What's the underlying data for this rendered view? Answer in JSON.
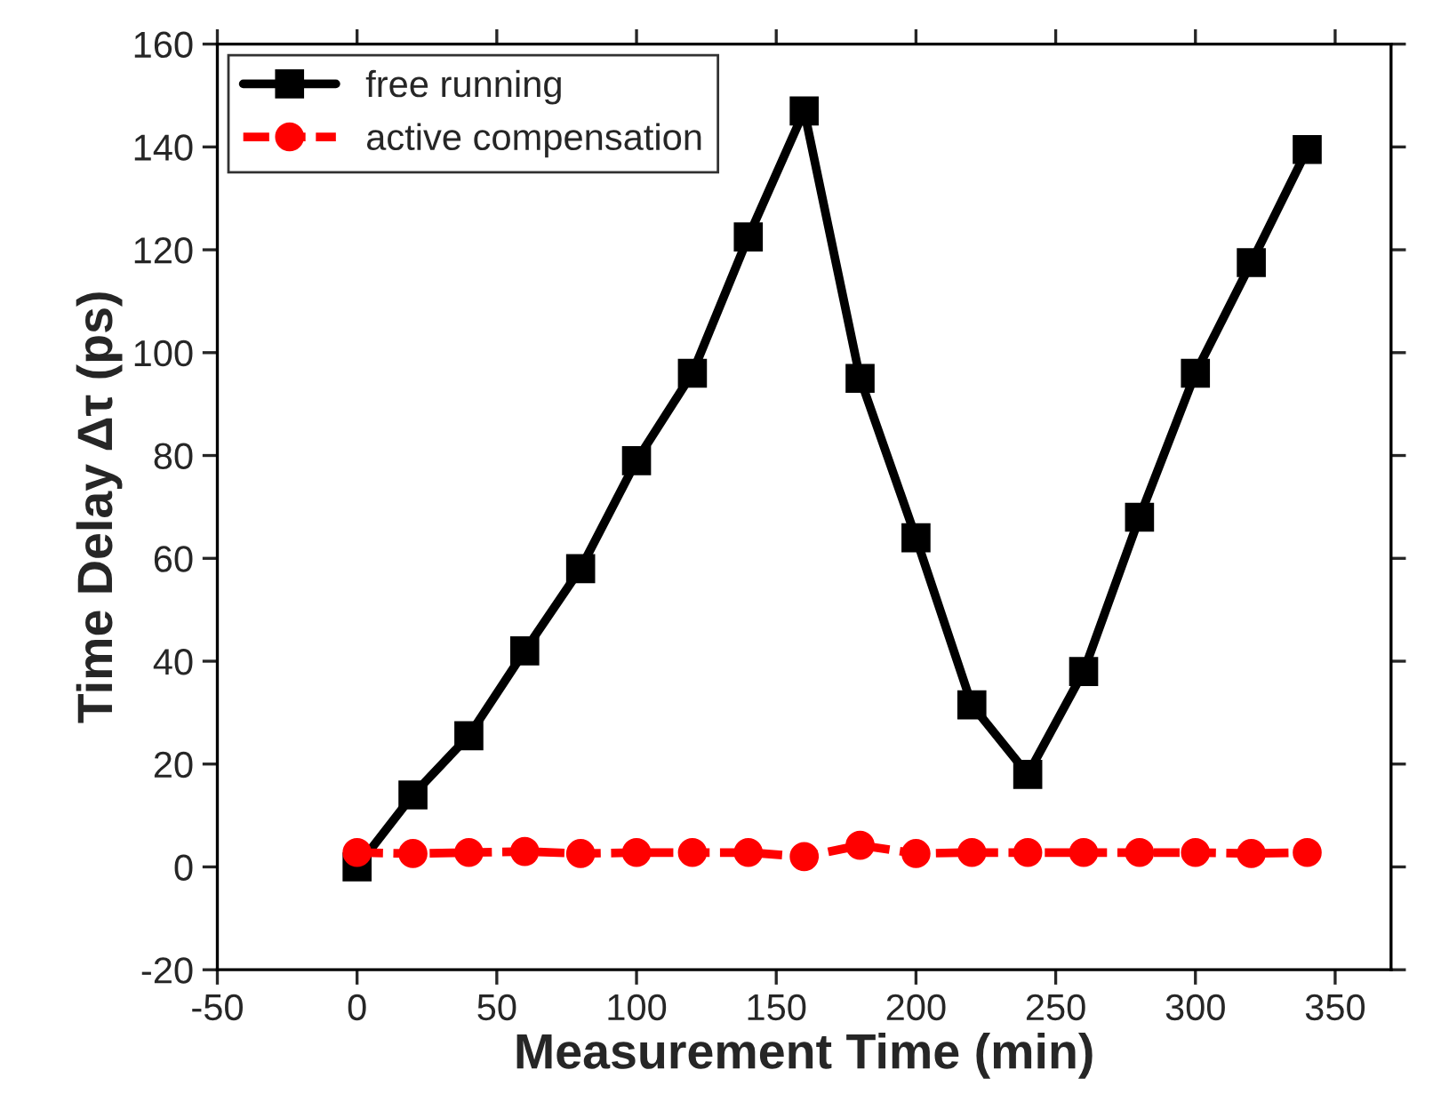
{
  "chart_data": {
    "type": "line",
    "xlabel": "Measurement Time (min)",
    "ylabel": "Time Delay Δτ (ps)",
    "x": [
      0,
      20,
      40,
      60,
      80,
      100,
      120,
      140,
      160,
      180,
      200,
      220,
      240,
      260,
      280,
      300,
      320,
      340
    ],
    "series": [
      {
        "name": "free running",
        "color": "#000000",
        "marker": "square",
        "line_style": "solid",
        "values": [
          0,
          14,
          25.5,
          42,
          58,
          79,
          96,
          122.5,
          147,
          95,
          64,
          31.5,
          18,
          38,
          68,
          96,
          117.5,
          139.5
        ]
      },
      {
        "name": "active compensation",
        "color": "#ff0000",
        "marker": "circle",
        "line_style": "dashed",
        "values": [
          2.8,
          2.6,
          2.8,
          3,
          2.6,
          2.8,
          2.8,
          2.8,
          2,
          4.2,
          2.6,
          2.8,
          2.8,
          2.8,
          2.8,
          2.8,
          2.6,
          2.8
        ]
      }
    ],
    "xlim": [
      -50,
      370
    ],
    "xticks": [
      -50,
      0,
      50,
      100,
      150,
      200,
      250,
      300,
      350
    ],
    "ylim": [
      -20,
      160
    ],
    "yticks": [
      -20,
      0,
      20,
      40,
      60,
      80,
      100,
      120,
      140,
      160
    ],
    "grid": false,
    "legend": "top left"
  }
}
